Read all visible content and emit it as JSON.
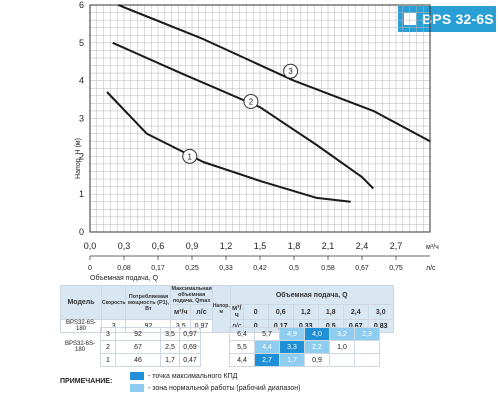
{
  "badge": "BPS 32-6S",
  "chart_data": {
    "type": "line",
    "title": "BPS 32-6S",
    "xlabel": "Объемная подача, Q",
    "ylabel": "Напор, H (м)",
    "x_unit_top": "м³/ч",
    "x_unit_bottom": "л/с",
    "xlim": [
      0,
      3.0
    ],
    "ylim": [
      0,
      6
    ],
    "x_ticks": [
      "0,0",
      "0,3",
      "0,6",
      "0,9",
      "1,2",
      "1,5",
      "1,8",
      "2,1",
      "2,4",
      "2,7"
    ],
    "x_ticks_ls": [
      "0",
      "0,08",
      "0,17",
      "0,25",
      "0,33",
      "0,42",
      "0,5",
      "0,58",
      "0,67",
      "0,75"
    ],
    "y_ticks": [
      "0",
      "1",
      "2",
      "3",
      "4",
      "5",
      "6"
    ],
    "series": [
      {
        "name": "1",
        "points": [
          [
            0.15,
            3.7
          ],
          [
            0.5,
            2.6
          ],
          [
            1.0,
            1.85
          ],
          [
            1.5,
            1.35
          ],
          [
            2.0,
            0.9
          ],
          [
            2.3,
            0.8
          ]
        ]
      },
      {
        "name": "2",
        "points": [
          [
            0.2,
            5.0
          ],
          [
            0.8,
            4.2
          ],
          [
            1.5,
            3.3
          ],
          [
            2.0,
            2.3
          ],
          [
            2.4,
            1.45
          ],
          [
            2.5,
            1.15
          ]
        ]
      },
      {
        "name": "3",
        "points": [
          [
            0.25,
            6.0
          ],
          [
            1.0,
            5.1
          ],
          [
            1.8,
            4.0
          ],
          [
            2.5,
            3.2
          ],
          [
            3.0,
            2.4
          ]
        ]
      }
    ],
    "markers": [
      {
        "label": "1",
        "x": 0.88,
        "y": 2.0
      },
      {
        "label": "2",
        "x": 1.42,
        "y": 3.45
      },
      {
        "label": "3",
        "x": 1.77,
        "y": 4.25
      }
    ]
  },
  "table": {
    "col_model": "Модель",
    "col_speed": "Скорость",
    "col_power": "Потребляемая мощность (P1), Вт",
    "col_qmax": "Максимальная объемная подача, Qmax",
    "unit_m3h": "м³/ч",
    "unit_ls": "л/с",
    "col_flow": "Объемная подача, Q",
    "col_head": "Напор, м",
    "flow_m3h": [
      "0",
      "0,6",
      "1,2",
      "1,8",
      "2,4",
      "3,0"
    ],
    "flow_ls": [
      "0",
      "0,17",
      "0,33",
      "0,5",
      "0,67",
      "0,83"
    ],
    "model": "BPS32-6S-180",
    "rows": [
      {
        "speed": "3",
        "power": "92",
        "qmax_m3h": "3,5",
        "qmax_ls": "0,97",
        "head": [
          "6,4",
          "5,7",
          "4,9",
          "4,0",
          "3,2",
          "2,3"
        ]
      },
      {
        "speed": "2",
        "power": "67",
        "qmax_m3h": "2,5",
        "qmax_ls": "0,69",
        "head": [
          "5,5",
          "4,4",
          "3,3",
          "2,2",
          "1,0",
          ""
        ]
      },
      {
        "speed": "1",
        "power": "46",
        "qmax_m3h": "1,7",
        "qmax_ls": "0,47",
        "head": [
          "4,4",
          "2,7",
          "1,7",
          "0,9",
          "",
          ""
        ]
      }
    ]
  },
  "colors": {
    "max_eff": "#1f8fd6",
    "normal_zone": "#8fcdf0"
  },
  "note": {
    "label": "ПРИМЕЧАНИЕ:",
    "max_eff": "- точка максимального КПД",
    "normal_zone": "- зона нормальной работы (рабочий диапазон)"
  }
}
